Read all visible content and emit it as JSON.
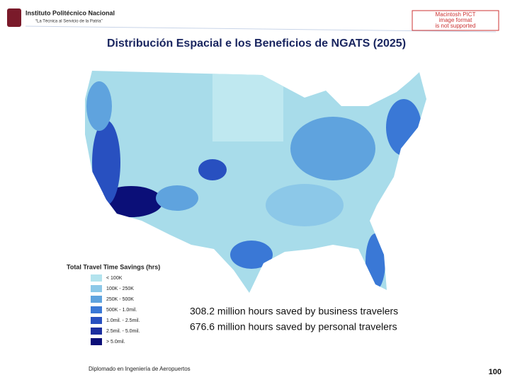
{
  "header": {
    "institution": "Instituto Politécnico Nacional",
    "motto": "“La Técnica al Servicio de la Patria”",
    "image_notice": [
      "Macintosh PICT",
      "image format",
      "is not supported"
    ]
  },
  "title": "Distribución Espacial e los Beneficios de NGATS (2025)",
  "legend": {
    "title": "Total Travel Time Savings (hrs)",
    "items": [
      {
        "label": "< 100K",
        "color": "#b3e3ee"
      },
      {
        "label": "100K - 250K",
        "color": "#8cc8e8"
      },
      {
        "label": "250K - 500K",
        "color": "#5fa3de"
      },
      {
        "label": "500K - 1.0mil.",
        "color": "#3a78d6"
      },
      {
        "label": "1.0mil. - 2.5mil.",
        "color": "#2850c0"
      },
      {
        "label": "2.5mil. - 5.0mil.",
        "color": "#1c2fa0"
      },
      {
        "label": "> 5.0mil.",
        "color": "#0b0f78"
      }
    ]
  },
  "stats": [
    "308.2 million hours saved by business travelers",
    "676.6 million hours saved by personal travelers"
  ],
  "footer": {
    "course": "Diplomado en Ingeniería de Aeropuertos",
    "page": "100"
  }
}
